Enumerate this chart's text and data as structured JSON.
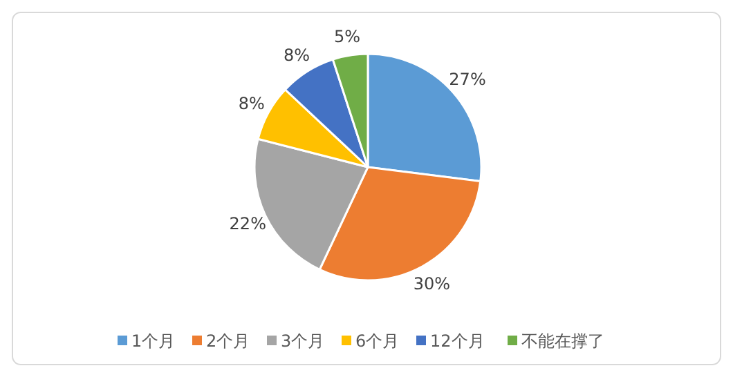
{
  "chart_data": {
    "type": "pie",
    "categories": [
      "1个月",
      "2个月",
      "3个月",
      "6个月",
      "12个月",
      "不能在撑了"
    ],
    "values": [
      27,
      30,
      22,
      8,
      8,
      5
    ],
    "colors": [
      "#5b9bd5",
      "#ed7d31",
      "#a5a5a5",
      "#ffc000",
      "#4472c4",
      "#70ad47"
    ],
    "value_labels": [
      "27%",
      "30%",
      "22%",
      "8%",
      "8%",
      "5%"
    ],
    "legend": "bottom"
  }
}
